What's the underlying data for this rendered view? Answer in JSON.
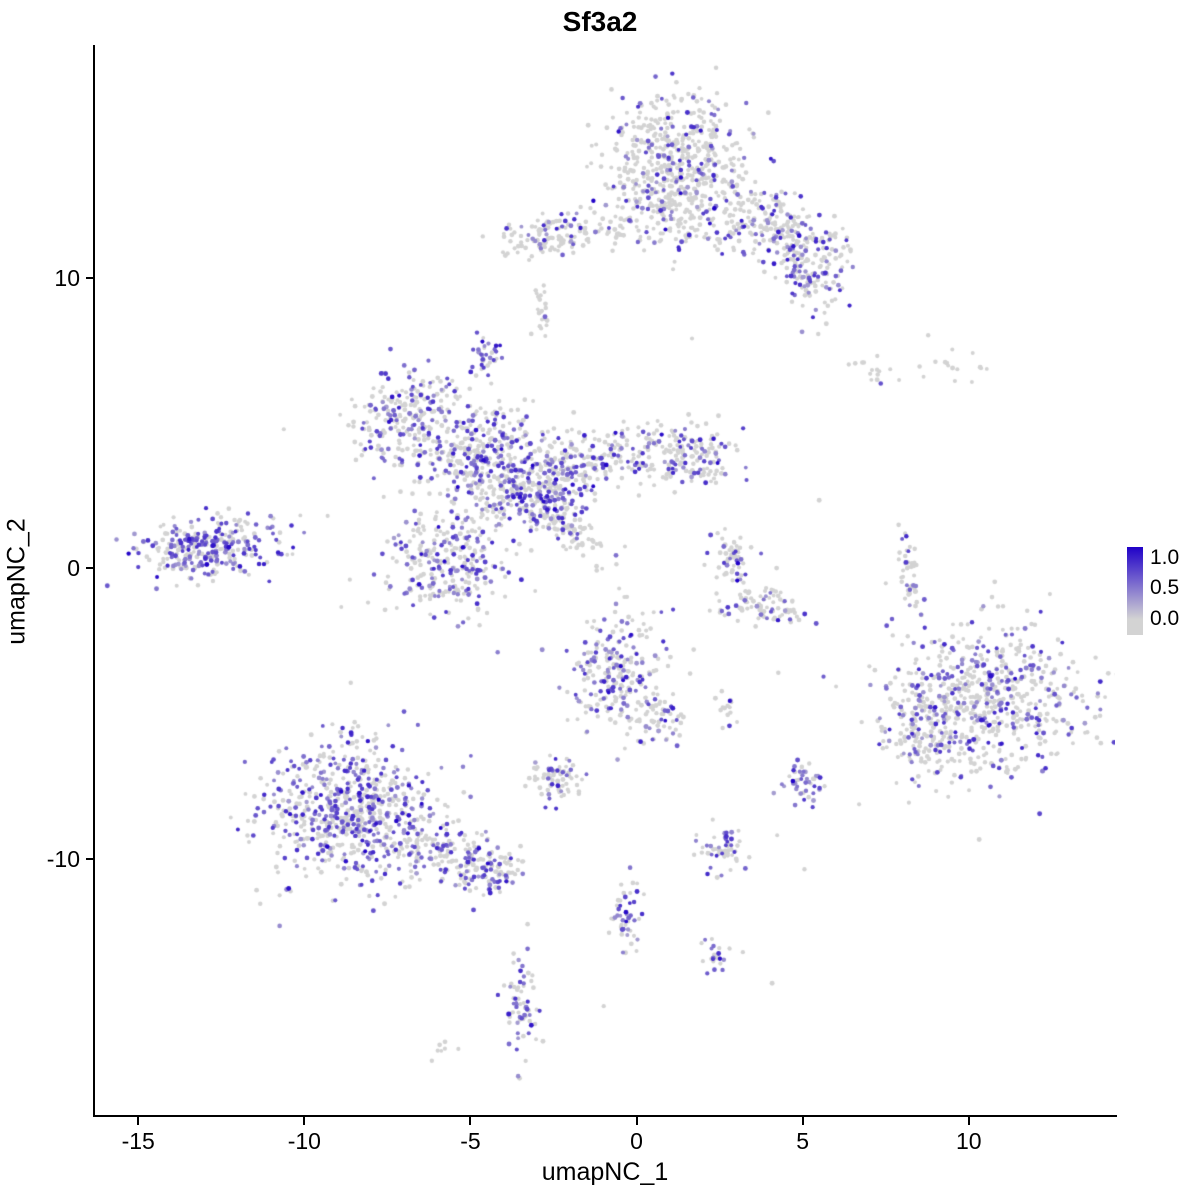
{
  "title": "Sf3a2",
  "axes": {
    "x_label": "umapNC_1",
    "y_label": "umapNC_2",
    "x_ticks": [
      "-15",
      "-10",
      "-5",
      "0",
      "5",
      "10"
    ],
    "x_tick_values": [
      -15,
      -10,
      -5,
      0,
      5,
      10
    ],
    "y_ticks": [
      "10",
      "0",
      "-10"
    ],
    "y_tick_values": [
      10,
      0,
      -10
    ]
  },
  "legend": {
    "labels": [
      "1.0",
      "0.5",
      "0.0"
    ],
    "label_positions_pct": [
      12,
      47,
      82
    ],
    "color_high": "#2001c8",
    "color_low": "#d3d3d3"
  },
  "chart_data": {
    "type": "scatter",
    "subtype": "umap-feature-plot",
    "title": "Sf3a2",
    "xlabel": "umapNC_1",
    "ylabel": "umapNC_2",
    "xlim": [
      -16.3,
      14.4
    ],
    "ylim": [
      -18.8,
      18.0
    ],
    "grid": false,
    "legend_position": "right",
    "colorbar_range": [
      0.0,
      1.0
    ],
    "point_color_zero": "#d3d3d3",
    "point_color_max": "#2001c8",
    "point_radius_px": 2.2,
    "seed": 42,
    "clusters": [
      {
        "name": "top-main",
        "cx": 1.2,
        "cy": 13.9,
        "sx": 1.05,
        "sy": 1.15,
        "rot": 0,
        "n": 520,
        "frac": 0.22
      },
      {
        "name": "top-main-south",
        "cx": 1.8,
        "cy": 12.0,
        "sx": 1.5,
        "sy": 0.6,
        "rot": -15,
        "n": 150,
        "frac": 0.25
      },
      {
        "name": "top-right-arm",
        "cx": 4.4,
        "cy": 11.7,
        "sx": 0.9,
        "sy": 0.55,
        "rot": -35,
        "n": 170,
        "frac": 0.3
      },
      {
        "name": "top-right-tip",
        "cx": 5.3,
        "cy": 10.2,
        "sx": 0.45,
        "sy": 0.75,
        "rot": 0,
        "n": 130,
        "frac": 0.4
      },
      {
        "name": "north-small",
        "cx": -2.7,
        "cy": 11.4,
        "sx": 0.85,
        "sy": 0.35,
        "rot": 5,
        "n": 110,
        "frac": 0.2
      },
      {
        "name": "north-bridge",
        "cx": -0.9,
        "cy": 11.7,
        "sx": 0.9,
        "sy": 0.25,
        "rot": 0,
        "n": 35,
        "frac": 0.15
      },
      {
        "name": "north-tiny",
        "cx": -2.9,
        "cy": 8.8,
        "sx": 0.15,
        "sy": 0.45,
        "rot": 0,
        "n": 24,
        "frac": 0.1
      },
      {
        "name": "small-purple-knot",
        "cx": -4.6,
        "cy": 7.4,
        "sx": 0.22,
        "sy": 0.35,
        "rot": 0,
        "n": 34,
        "frac": 0.6
      },
      {
        "name": "central-upper-left",
        "cx": -6.9,
        "cy": 5.3,
        "sx": 0.85,
        "sy": 0.8,
        "rot": 20,
        "n": 230,
        "frac": 0.35
      },
      {
        "name": "central-mid-left",
        "cx": -5.3,
        "cy": 4.1,
        "sx": 0.9,
        "sy": 0.65,
        "rot": 30,
        "n": 170,
        "frac": 0.3
      },
      {
        "name": "central-core",
        "cx": -3.9,
        "cy": 3.3,
        "sx": 0.85,
        "sy": 0.95,
        "rot": 0,
        "n": 280,
        "frac": 0.42
      },
      {
        "name": "central-core-east",
        "cx": -2.6,
        "cy": 2.7,
        "sx": 0.7,
        "sy": 0.7,
        "rot": 0,
        "n": 200,
        "frac": 0.45
      },
      {
        "name": "central-arm-east",
        "cx": -0.9,
        "cy": 3.9,
        "sx": 1.2,
        "sy": 0.5,
        "rot": 8,
        "n": 150,
        "frac": 0.28
      },
      {
        "name": "central-arm-tip",
        "cx": 1.5,
        "cy": 3.9,
        "sx": 0.8,
        "sy": 0.6,
        "rot": -20,
        "n": 140,
        "frac": 0.33
      },
      {
        "name": "central-lower",
        "cx": -5.6,
        "cy": 0.3,
        "sx": 0.95,
        "sy": 1.0,
        "rot": -10,
        "n": 290,
        "frac": 0.4
      },
      {
        "name": "central-streak",
        "cx": -1.9,
        "cy": 1.3,
        "sx": 0.8,
        "sy": 0.3,
        "rot": -40,
        "n": 80,
        "frac": 0.2
      },
      {
        "name": "left-island",
        "cx": -12.9,
        "cy": 0.7,
        "sx": 1.05,
        "sy": 0.55,
        "rot": 8,
        "n": 310,
        "frac": 0.55
      },
      {
        "name": "mid-right-small",
        "cx": 2.9,
        "cy": 0.4,
        "sx": 0.35,
        "sy": 0.55,
        "rot": 0,
        "n": 60,
        "frac": 0.35
      },
      {
        "name": "mid-right-crescent",
        "cx": 3.7,
        "cy": -1.3,
        "sx": 0.75,
        "sy": 0.35,
        "rot": -15,
        "n": 90,
        "frac": 0.12
      },
      {
        "name": "right-strip",
        "cx": 8.2,
        "cy": 0.0,
        "sx": 0.16,
        "sy": 0.75,
        "rot": 5,
        "n": 48,
        "frac": 0.2
      },
      {
        "name": "topright-sparse-1",
        "cx": 7.0,
        "cy": 6.8,
        "sx": 0.45,
        "sy": 0.3,
        "rot": 0,
        "n": 14,
        "frac": 0.05
      },
      {
        "name": "topright-sparse-2",
        "cx": 9.4,
        "cy": 6.9,
        "sx": 0.5,
        "sy": 0.3,
        "rot": 0,
        "n": 16,
        "frac": 0.05
      },
      {
        "name": "right-large",
        "cx": 10.6,
        "cy": -4.6,
        "sx": 1.45,
        "sy": 1.35,
        "rot": 0,
        "n": 620,
        "frac": 0.28
      },
      {
        "name": "right-large-west",
        "cx": 8.6,
        "cy": -5.4,
        "sx": 0.6,
        "sy": 0.85,
        "rot": 0,
        "n": 130,
        "frac": 0.3
      },
      {
        "name": "bottomleft-large",
        "cx": -8.6,
        "cy": -8.4,
        "sx": 1.25,
        "sy": 1.2,
        "rot": 0,
        "n": 680,
        "frac": 0.42
      },
      {
        "name": "bottomleft-tail",
        "cx": -5.7,
        "cy": -9.9,
        "sx": 1.05,
        "sy": 0.5,
        "rot": -22,
        "n": 180,
        "frac": 0.3
      },
      {
        "name": "bottomleft-tip",
        "cx": -4.1,
        "cy": -10.4,
        "sx": 0.4,
        "sy": 0.3,
        "rot": 0,
        "n": 50,
        "frac": 0.4
      },
      {
        "name": "small-mid-low",
        "cx": -2.3,
        "cy": -7.3,
        "sx": 0.45,
        "sy": 0.38,
        "rot": 0,
        "n": 70,
        "frac": 0.35
      },
      {
        "name": "mid-cluster",
        "cx": -0.6,
        "cy": -3.6,
        "sx": 0.72,
        "sy": 0.95,
        "rot": 0,
        "n": 230,
        "frac": 0.4
      },
      {
        "name": "mid-cluster-tail",
        "cx": 0.7,
        "cy": -5.2,
        "sx": 0.5,
        "sy": 0.5,
        "rot": -30,
        "n": 60,
        "frac": 0.3
      },
      {
        "name": "tiny-right-mid",
        "cx": 2.8,
        "cy": -4.9,
        "sx": 0.2,
        "sy": 0.25,
        "rot": 0,
        "n": 16,
        "frac": 0.2
      },
      {
        "name": "small-far-right",
        "cx": 5.0,
        "cy": -7.4,
        "sx": 0.28,
        "sy": 0.42,
        "rot": 0,
        "n": 46,
        "frac": 0.5
      },
      {
        "name": "small-low-mid",
        "cx": 2.5,
        "cy": -9.6,
        "sx": 0.38,
        "sy": 0.4,
        "rot": 0,
        "n": 56,
        "frac": 0.45
      },
      {
        "name": "low-vertical",
        "cx": -0.3,
        "cy": -11.9,
        "sx": 0.22,
        "sy": 0.65,
        "rot": 0,
        "n": 50,
        "frac": 0.45
      },
      {
        "name": "low-trail",
        "cx": 2.3,
        "cy": -13.2,
        "sx": 0.3,
        "sy": 0.3,
        "rot": 0,
        "n": 28,
        "frac": 0.4
      },
      {
        "name": "bottom-spur",
        "cx": -3.5,
        "cy": -15.0,
        "sx": 0.3,
        "sy": 0.95,
        "rot": 0,
        "n": 70,
        "frac": 0.35
      },
      {
        "name": "bottom-dots",
        "cx": -5.9,
        "cy": -16.5,
        "sx": 0.25,
        "sy": 0.15,
        "rot": 0,
        "n": 7,
        "frac": 0.0
      },
      {
        "name": "scatter-noise",
        "cx": -1.0,
        "cy": -1.0,
        "sx": 7.0,
        "sy": 7.0,
        "rot": 0,
        "n": 30,
        "frac": 0.1
      }
    ]
  }
}
